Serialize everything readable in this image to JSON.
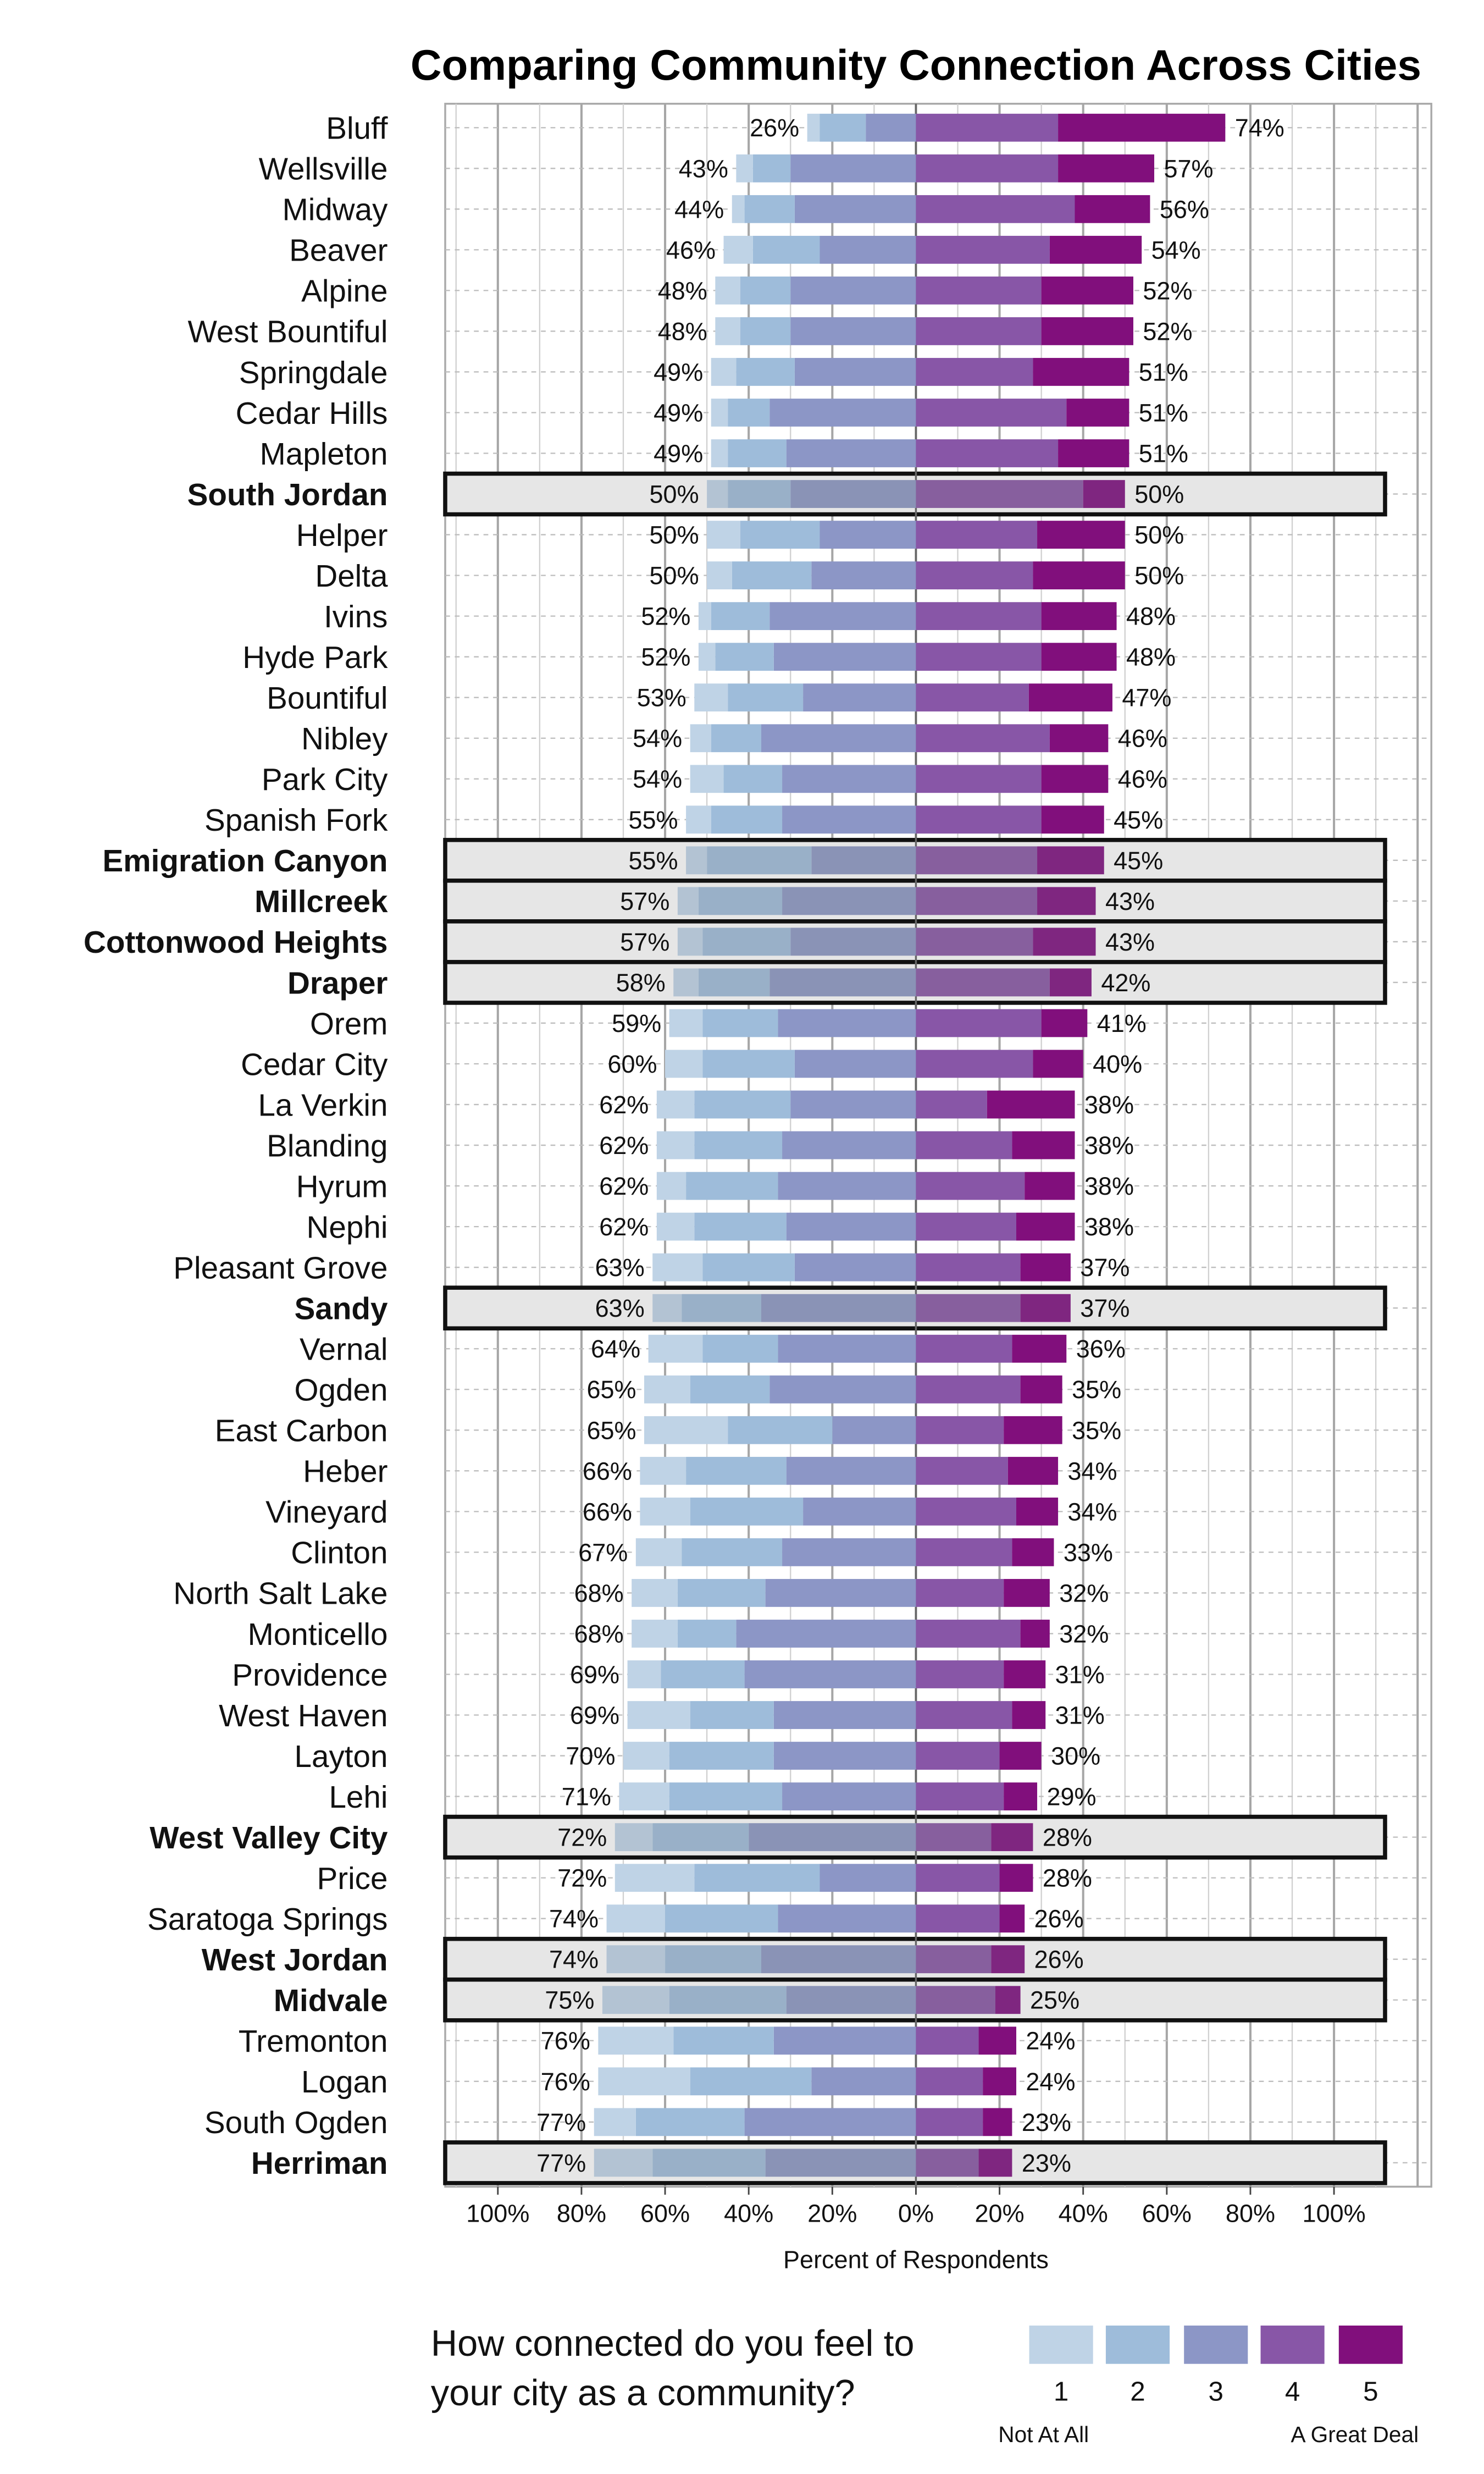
{
  "chart_data": {
    "type": "bar",
    "subtype": "diverging-stacked",
    "orientation": "horizontal",
    "title": "Comparing Community Connection Across Cities",
    "xlabel": "Percent of Respondents",
    "ylabel": "",
    "xlim": [
      -100,
      100
    ],
    "xticks": [
      -100,
      -80,
      -60,
      -40,
      -20,
      0,
      20,
      40,
      60,
      80,
      100
    ],
    "xtick_labels": [
      "100%",
      "80%",
      "60%",
      "40%",
      "20%",
      "0%",
      "20%",
      "40%",
      "60%",
      "80%",
      "100%"
    ],
    "grid": true,
    "legend": {
      "title_line1": "How connected do you feel to",
      "title_line2": "your city as a community?",
      "entries": [
        "1",
        "2",
        "3",
        "4",
        "5"
      ],
      "low_anchor": "Not At All",
      "high_anchor": "A Great Deal",
      "placement": "bottom"
    },
    "categories": [
      "Bluff",
      "Wellsville",
      "Midway",
      "Beaver",
      "Alpine",
      "West Bountiful",
      "Springdale",
      "Cedar Hills",
      "Mapleton",
      "South Jordan",
      "Helper",
      "Delta",
      "Ivins",
      "Hyde Park",
      "Bountiful",
      "Nibley",
      "Park City",
      "Spanish Fork",
      "Emigration Canyon",
      "Millcreek",
      "Cottonwood Heights",
      "Draper",
      "Orem",
      "Cedar City",
      "La Verkin",
      "Blanding",
      "Hyrum",
      "Nephi",
      "Pleasant Grove",
      "Sandy",
      "Vernal",
      "Ogden",
      "East Carbon",
      "Heber",
      "Vineyard",
      "Clinton",
      "North Salt Lake",
      "Monticello",
      "Providence",
      "West Haven",
      "Layton",
      "Lehi",
      "West Valley City",
      "Price",
      "Saratoga Springs",
      "West Jordan",
      "Midvale",
      "Tremonton",
      "Logan",
      "South Ogden",
      "Herriman"
    ],
    "highlighted": [
      "South Jordan",
      "Emigration Canyon",
      "Millcreek",
      "Cottonwood Heights",
      "Draper",
      "Sandy",
      "West Valley City",
      "West Jordan",
      "Midvale",
      "Herriman"
    ],
    "series": [
      {
        "name": "1",
        "side": "left",
        "color": "#bfd3e6",
        "values": [
          3,
          4,
          3,
          7,
          6,
          6,
          6,
          4,
          4,
          5,
          8,
          6,
          3,
          4,
          8,
          5,
          8,
          6,
          5,
          5,
          6,
          6,
          8,
          9,
          9,
          9,
          7,
          9,
          12,
          7,
          13,
          11,
          20,
          11,
          12,
          11,
          11,
          11,
          8,
          15,
          11,
          12,
          9,
          19,
          14,
          14,
          16,
          18,
          22,
          10,
          14
        ]
      },
      {
        "name": "2",
        "side": "left",
        "color": "#9ebcda",
        "values": [
          11,
          9,
          12,
          16,
          12,
          12,
          14,
          10,
          14,
          15,
          19,
          19,
          14,
          14,
          18,
          12,
          14,
          17,
          25,
          20,
          21,
          17,
          18,
          22,
          23,
          21,
          22,
          22,
          22,
          19,
          18,
          19,
          25,
          24,
          27,
          24,
          21,
          14,
          20,
          20,
          25,
          27,
          23,
          30,
          27,
          23,
          28,
          24,
          29,
          26,
          27
        ]
      },
      {
        "name": "3",
        "side": "left",
        "color": "#8c96c6",
        "values": [
          12,
          30,
          29,
          23,
          30,
          30,
          29,
          35,
          31,
          30,
          23,
          25,
          35,
          34,
          27,
          37,
          32,
          32,
          25,
          32,
          30,
          35,
          33,
          29,
          30,
          32,
          33,
          31,
          29,
          37,
          33,
          35,
          20,
          31,
          27,
          32,
          36,
          43,
          41,
          34,
          34,
          32,
          40,
          23,
          33,
          37,
          31,
          34,
          25,
          41,
          36
        ]
      },
      {
        "name": "4",
        "side": "right",
        "color": "#8856a7",
        "values": [
          34,
          34,
          38,
          32,
          30,
          30,
          28,
          36,
          34,
          40,
          29,
          28,
          30,
          30,
          27,
          32,
          30,
          30,
          29,
          29,
          28,
          32,
          30,
          28,
          17,
          23,
          26,
          24,
          25,
          25,
          23,
          25,
          21,
          22,
          24,
          23,
          21,
          25,
          21,
          23,
          20,
          21,
          18,
          20,
          20,
          18,
          19,
          15,
          16,
          16,
          15
        ]
      },
      {
        "name": "5",
        "side": "right",
        "color": "#810f7c",
        "values": [
          40,
          23,
          18,
          22,
          22,
          22,
          23,
          15,
          17,
          10,
          21,
          22,
          18,
          18,
          20,
          14,
          16,
          15,
          16,
          14,
          15,
          10,
          11,
          12,
          21,
          15,
          12,
          14,
          12,
          12,
          13,
          10,
          14,
          12,
          10,
          10,
          11,
          7,
          10,
          8,
          10,
          8,
          10,
          8,
          6,
          8,
          6,
          9,
          8,
          7,
          8
        ]
      }
    ],
    "left_labels": [
      "26%",
      "43%",
      "44%",
      "46%",
      "48%",
      "48%",
      "49%",
      "49%",
      "49%",
      "50%",
      "50%",
      "50%",
      "52%",
      "52%",
      "53%",
      "54%",
      "54%",
      "55%",
      "55%",
      "57%",
      "57%",
      "58%",
      "59%",
      "60%",
      "62%",
      "62%",
      "62%",
      "62%",
      "63%",
      "63%",
      "64%",
      "65%",
      "65%",
      "66%",
      "66%",
      "67%",
      "68%",
      "68%",
      "69%",
      "69%",
      "70%",
      "71%",
      "72%",
      "72%",
      "74%",
      "74%",
      "75%",
      "76%",
      "76%",
      "77%",
      "77%"
    ],
    "right_labels": [
      "74%",
      "57%",
      "56%",
      "54%",
      "52%",
      "52%",
      "51%",
      "51%",
      "51%",
      "50%",
      "50%",
      "50%",
      "48%",
      "48%",
      "47%",
      "46%",
      "46%",
      "45%",
      "45%",
      "43%",
      "43%",
      "42%",
      "41%",
      "40%",
      "38%",
      "38%",
      "38%",
      "38%",
      "37%",
      "37%",
      "36%",
      "35%",
      "35%",
      "34%",
      "34%",
      "33%",
      "32%",
      "32%",
      "31%",
      "31%",
      "30%",
      "29%",
      "28%",
      "28%",
      "26%",
      "26%",
      "25%",
      "24%",
      "24%",
      "23%",
      "23%"
    ],
    "highlight_colors": [
      "#b3c3d3",
      "#99b0c8",
      "#8a93b6",
      "#875f9e",
      "#7f2680"
    ],
    "highlight_background": "#e6e6e6"
  }
}
